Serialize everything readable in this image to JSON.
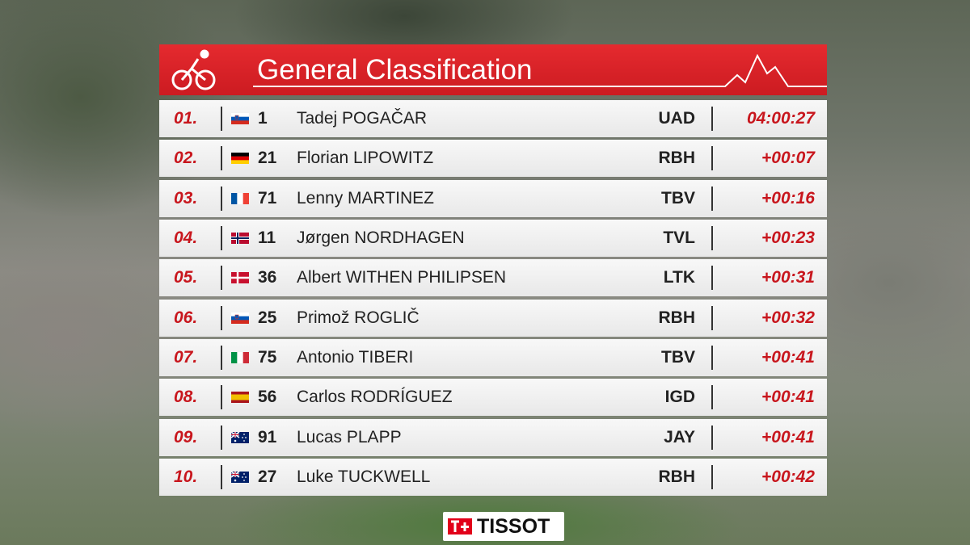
{
  "header": {
    "title": "General Classification"
  },
  "rows": [
    {
      "rank": "01.",
      "bib": "1",
      "rider": "Tadej POGAČAR",
      "team": "UAD",
      "time": "04:00:27"
    },
    {
      "rank": "02.",
      "bib": "21",
      "rider": "Florian LIPOWITZ",
      "team": "RBH",
      "time": "+00:07"
    },
    {
      "rank": "03.",
      "bib": "71",
      "rider": "Lenny MARTINEZ",
      "team": "TBV",
      "time": "+00:16"
    },
    {
      "rank": "04.",
      "bib": "11",
      "rider": "Jørgen NORDHAGEN",
      "team": "TVL",
      "time": "+00:23"
    },
    {
      "rank": "05.",
      "bib": "36",
      "rider": "Albert WITHEN PHILIPSEN",
      "team": "LTK",
      "time": "+00:31"
    },
    {
      "rank": "06.",
      "bib": "25",
      "rider": "Primož ROGLIČ",
      "team": "RBH",
      "time": "+00:32"
    },
    {
      "rank": "07.",
      "bib": "75",
      "rider": "Antonio TIBERI",
      "team": "TBV",
      "time": "+00:41"
    },
    {
      "rank": "08.",
      "bib": "56",
      "rider": "Carlos RODRÍGUEZ",
      "team": "IGD",
      "time": "+00:41"
    },
    {
      "rank": "09.",
      "bib": "91",
      "rider": "Lucas PLAPP",
      "team": "JAY",
      "time": "+00:41"
    },
    {
      "rank": "10.",
      "bib": "27",
      "rider": "Luke TUCKWELL",
      "team": "RBH",
      "time": "+00:42"
    }
  ],
  "sponsor": {
    "name": "TISSOT"
  }
}
